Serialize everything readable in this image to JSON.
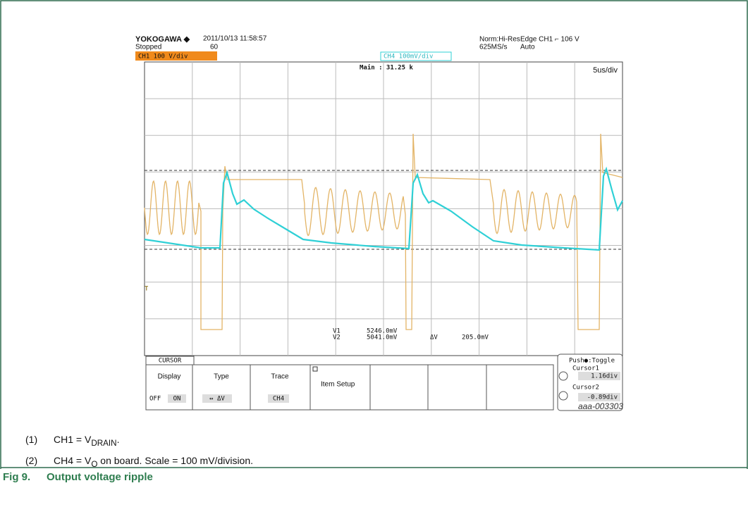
{
  "scope": {
    "brand": "YOKOGAWA ◆",
    "datetime": "2011/10/13 11:58:57",
    "status": "Stopped",
    "trigger_count": "60",
    "ch1_scale": "CH1 100 V/div",
    "ch4_scale": "CH4 100mV/div",
    "main": "Main : 31.25 k",
    "mode": "Norm:Hi-Res",
    "sample_rate": "625MS/s",
    "trigger": "Edge CH1 ⌐ 106 V",
    "trigger_mode": "Auto",
    "timebase": "5us/div",
    "trigger_marker": "T",
    "v1_label": "V1",
    "v1": "5246.0mV",
    "v2_label": "V2",
    "v2": "5041.0mV",
    "dv_label": "ΔV",
    "dv": "205.0mV",
    "menu": {
      "tab": "CURSOR",
      "display": "Display",
      "off": "OFF",
      "on": "ON",
      "type": "Type",
      "type_value": "↔ ΔV",
      "trace": "Trace",
      "trace_value": "CH4",
      "item_setup": "Item Setup",
      "toggle": "Push●:Toggle",
      "cursor1": "Cursor1",
      "cursor1_value": "1.16div",
      "cursor2": "Cursor2",
      "cursor2_value": "-0.89div"
    }
  },
  "image_id": "aaa-003303",
  "notes": [
    {
      "number": "(1)",
      "text": "CH1 = V",
      "sub": "DRAIN",
      "tail": "."
    },
    {
      "number": "(2)",
      "text": "CH4 = V",
      "sub": "O",
      "tail": " on board. Scale = 100 mV/division."
    }
  ],
  "caption": {
    "number": "Fig 9.",
    "title": "Output voltage ripple"
  }
}
